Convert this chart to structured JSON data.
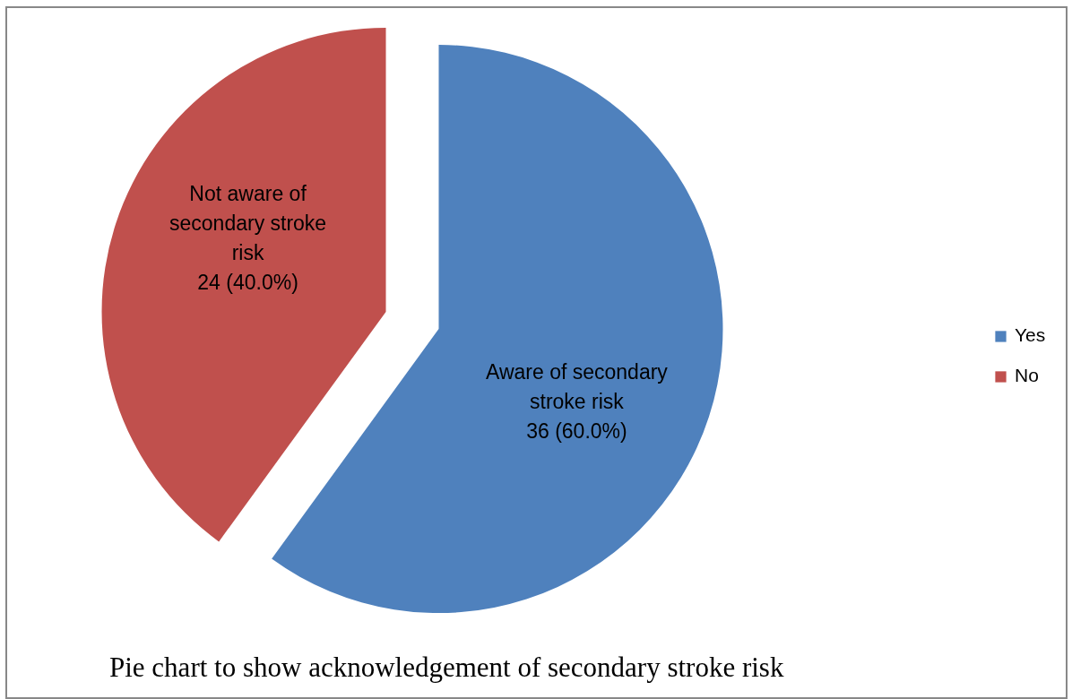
{
  "chart_data": {
    "type": "pie",
    "title": "Pie chart to show acknowledgement  of  secondary stroke risk",
    "categories": [
      "Yes",
      "No"
    ],
    "values": [
      36,
      24
    ],
    "colors": [
      "#4f81bd",
      "#c0504d"
    ],
    "value_labels": [
      "Aware of secondary\nstroke  risk\n36 (60.0%)",
      "Not aware of\nsecondary  stroke\nrisk\n24 (40.0%)"
    ],
    "legend": "right"
  }
}
